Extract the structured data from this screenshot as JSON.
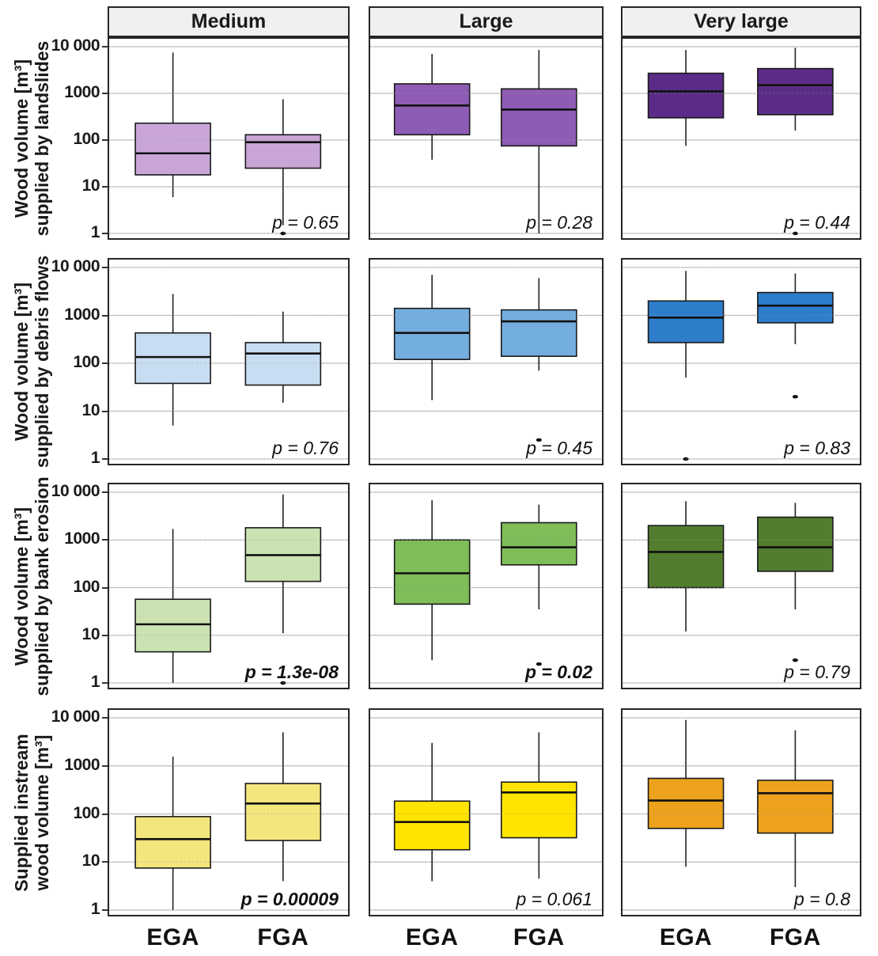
{
  "chart_data": {
    "type": "boxplot-grid",
    "scale": "log10",
    "y_axis_range": [
      1,
      10000
    ],
    "grid": "major-horizontal",
    "y_ticks": [
      "10 000",
      "1000",
      "100",
      "10",
      "1"
    ],
    "y_tick_values": [
      10000,
      1000,
      100,
      10,
      1
    ],
    "series": [
      "EGA",
      "FGA"
    ],
    "col_headers": [
      "Medium",
      "Large",
      "Very large"
    ],
    "row_labels": [
      [
        "Wood volume [m³]",
        "supplied by landslides"
      ],
      [
        "Wood volume [m³]",
        "supplied by debris flows"
      ],
      [
        "Wood volume [m³]",
        "supplied by bank erosion"
      ],
      [
        "Supplied instream",
        "wood volume [m³]"
      ]
    ],
    "header_fill": "#f0f0f0",
    "grid_color": "#c6c6c6",
    "rows": [
      {
        "name": "supplied by landslides",
        "panels": [
          {
            "color": "#c9a6d7",
            "p_label": "p = 0.65",
            "p_bold": false,
            "boxes": [
              {
                "low": 6,
                "q1": 18,
                "median": 52,
                "q3": 230,
                "high": 7500,
                "outliers": []
              },
              {
                "low": 1.5,
                "q1": 25,
                "median": 90,
                "q3": 130,
                "high": 750,
                "outliers": [
                  1
                ]
              }
            ]
          },
          {
            "color": "#8f5cb5",
            "p_label": "p = 0.28",
            "p_bold": false,
            "boxes": [
              {
                "low": 38,
                "q1": 130,
                "median": 550,
                "q3": 1600,
                "high": 7000,
                "outliers": []
              },
              {
                "low": 1,
                "q1": 75,
                "median": 450,
                "q3": 1250,
                "high": 8500,
                "outliers": []
              }
            ]
          },
          {
            "color": "#5b2c87",
            "p_label": "p = 0.44",
            "p_bold": false,
            "boxes": [
              {
                "low": 75,
                "q1": 300,
                "median": 1100,
                "q3": 2700,
                "high": 8500,
                "outliers": []
              },
              {
                "low": 160,
                "q1": 350,
                "median": 1500,
                "q3": 3400,
                "high": 9500,
                "outliers": [
                  1
                ]
              }
            ]
          }
        ]
      },
      {
        "name": "supplied by debris flows",
        "panels": [
          {
            "color": "#c9ddf2",
            "p_label": "p = 0.76",
            "p_bold": false,
            "boxes": [
              {
                "low": 5,
                "q1": 38,
                "median": 135,
                "q3": 430,
                "high": 2800,
                "outliers": []
              },
              {
                "low": 15,
                "q1": 35,
                "median": 160,
                "q3": 270,
                "high": 1200,
                "outliers": []
              }
            ]
          },
          {
            "color": "#74aede",
            "p_label": "p = 0.45",
            "p_bold": false,
            "boxes": [
              {
                "low": 17,
                "q1": 120,
                "median": 430,
                "q3": 1400,
                "high": 7000,
                "outliers": []
              },
              {
                "low": 70,
                "q1": 140,
                "median": 750,
                "q3": 1300,
                "high": 6000,
                "outliers": [
                  2.5
                ]
              }
            ]
          },
          {
            "color": "#2e7dcb",
            "p_label": "p = 0.83",
            "p_bold": false,
            "boxes": [
              {
                "low": 50,
                "q1": 270,
                "median": 900,
                "q3": 2000,
                "high": 8500,
                "outliers": [
                  1
                ]
              },
              {
                "low": 250,
                "q1": 700,
                "median": 1600,
                "q3": 3000,
                "high": 7500,
                "outliers": [
                  20
                ]
              }
            ]
          }
        ]
      },
      {
        "name": "supplied by bank erosion",
        "panels": [
          {
            "color": "#cbe3b3",
            "p_label": "p = 1.3e-08",
            "p_bold": true,
            "boxes": [
              {
                "low": 1,
                "q1": 4.5,
                "median": 17,
                "q3": 57,
                "high": 1700,
                "outliers": []
              },
              {
                "low": 11,
                "q1": 135,
                "median": 480,
                "q3": 1800,
                "high": 9000,
                "outliers": [
                  1
                ]
              }
            ]
          },
          {
            "color": "#7fbd58",
            "p_label": "p = 0.02",
            "p_bold": true,
            "boxes": [
              {
                "low": 3,
                "q1": 45,
                "median": 200,
                "q3": 1000,
                "high": 6800,
                "outliers": []
              },
              {
                "low": 35,
                "q1": 300,
                "median": 700,
                "q3": 2300,
                "high": 5500,
                "outliers": [
                  2.5
                ]
              }
            ]
          },
          {
            "color": "#527d2f",
            "p_label": "p = 0.79",
            "p_bold": false,
            "boxes": [
              {
                "low": 12,
                "q1": 100,
                "median": 560,
                "q3": 2000,
                "high": 6500,
                "outliers": []
              },
              {
                "low": 35,
                "q1": 220,
                "median": 700,
                "q3": 3000,
                "high": 6000,
                "outliers": [
                  3
                ]
              }
            ]
          }
        ]
      },
      {
        "name": "supplied instream wood volume",
        "panels": [
          {
            "color": "#f3e67d",
            "p_label": "p = 0.00009",
            "p_bold": true,
            "boxes": [
              {
                "low": 1,
                "q1": 7.5,
                "median": 30,
                "q3": 88,
                "high": 1550,
                "outliers": []
              },
              {
                "low": 4,
                "q1": 28,
                "median": 165,
                "q3": 430,
                "high": 5000,
                "outliers": []
              }
            ]
          },
          {
            "color": "#ffe400",
            "p_label": "p = 0.061",
            "p_bold": false,
            "boxes": [
              {
                "low": 4,
                "q1": 18,
                "median": 68,
                "q3": 185,
                "high": 3000,
                "outliers": []
              },
              {
                "low": 4.5,
                "q1": 32,
                "median": 280,
                "q3": 460,
                "high": 5000,
                "outliers": []
              }
            ]
          },
          {
            "color": "#eca21d",
            "p_label": "p = 0.8",
            "p_bold": false,
            "boxes": [
              {
                "low": 8,
                "q1": 50,
                "median": 190,
                "q3": 550,
                "high": 9000,
                "outliers": []
              },
              {
                "low": 3,
                "q1": 40,
                "median": 270,
                "q3": 500,
                "high": 5500,
                "outliers": []
              }
            ]
          }
        ]
      }
    ]
  }
}
